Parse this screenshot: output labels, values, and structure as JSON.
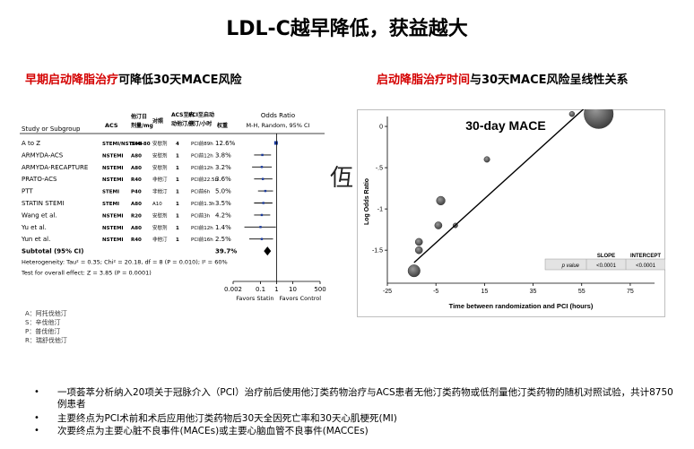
{
  "slide": {
    "title": "LDL-C越早降低，获益越大",
    "left_heading": {
      "red": "早期启动降脂治疗",
      "black": "可降低30天MACE风险"
    },
    "right_heading": {
      "red": "启动降脂治疗时间",
      "black": "与30天MACE风险呈线性关系"
    },
    "stray_glyph": "仾",
    "legend": [
      "A：阿托伐他汀",
      "S：辛伐他汀",
      "P：普伐他汀",
      "R：瑞舒伐他汀"
    ],
    "bullets": [
      "一项荟萃分析纳入20项关于冠脉介入（PCI）治疗前后使用他汀类药物治疗与ACS患者无他汀类药物或低剂量他汀类药物的随机对照试验，共计8750例患者",
      "主要终点为PCI术前和术后应用他汀类药物后30天全因死亡率和30天心肌梗死(MI)",
      "次要终点为主要心脏不良事件(MACEs)或主要心脑血管不良事件(MACCEs)"
    ]
  },
  "chart_data": [
    {
      "type": "table",
      "headers": {
        "study": "Study or Subgroup",
        "acs": "ACS",
        "dose": [
          "他汀日",
          "剂量/mg"
        ],
        "control": "对照",
        "days": [
          "ACS至启",
          "动他汀/天"
        ],
        "pci": [
          "PCI至启动",
          "他汀/小时"
        ],
        "weight": "权重",
        "or": [
          "Odds Ratio",
          "M-H, Random, 95% CI"
        ]
      },
      "rows": [
        {
          "study": "A to Z",
          "acs": "STEMI/NSTEMI",
          "dose": "S40-80",
          "control": "安慰剂",
          "days": "4",
          "pci": "PCI前89h",
          "weight": "12.6%",
          "or": 0.92,
          "lo": 0.89,
          "hi": 0.95,
          "marker": "square"
        },
        {
          "study": "ARMYDA-ACS",
          "acs": "NSTEMI",
          "dose": "A80",
          "control": "安慰剂",
          "days": "1",
          "pci": "PCI前12h",
          "weight": "3.8%",
          "or": 0.13,
          "lo": 0.04,
          "hi": 0.45
        },
        {
          "study": "ARMYDA-RECAPTURE",
          "acs": "NSTEMI",
          "dose": "A80",
          "control": "安慰剂",
          "days": "1",
          "pci": "PCI前12h",
          "weight": "3.2%",
          "or": 0.12,
          "lo": 0.03,
          "hi": 0.5
        },
        {
          "study": "PRATO-ACS",
          "acs": "NSTEMI",
          "dose": "R40",
          "control": "非他汀",
          "days": "1",
          "pci": "PCI前22.5h",
          "weight": "3.6%",
          "or": 0.14,
          "lo": 0.04,
          "hi": 0.55
        },
        {
          "study": "PTT",
          "acs": "STEMI",
          "dose": "P40",
          "control": "非他汀",
          "days": "1",
          "pci": "PCI前6h",
          "weight": "5.0%",
          "or": 0.2,
          "lo": 0.07,
          "hi": 0.6
        },
        {
          "study": "STATIN STEMI",
          "acs": "STEMI",
          "dose": "A80",
          "control": "A10",
          "days": "1",
          "pci": "PCI前1.3h",
          "weight": "3.5%",
          "or": 0.15,
          "lo": 0.04,
          "hi": 0.55
        },
        {
          "study": "Wang et al.",
          "acs": "NSTEMI",
          "dose": "R20",
          "control": "安慰剂",
          "days": "1",
          "pci": "PCI前3h",
          "weight": "4.2%",
          "or": 0.12,
          "lo": 0.04,
          "hi": 0.4
        },
        {
          "study": "Yu et al.",
          "acs": "NSTEMI",
          "dose": "A80",
          "control": "安慰剂",
          "days": "1",
          "pci": "PCI前12h",
          "weight": "1.4%",
          "or": 0.1,
          "lo": 0.01,
          "hi": 0.9
        },
        {
          "study": "Yun et al.",
          "acs": "NSTEMI",
          "dose": "R40",
          "control": "非他汀",
          "days": "1",
          "pci": "PCI前16h",
          "weight": "2.5%",
          "or": 0.12,
          "lo": 0.02,
          "hi": 0.6
        }
      ],
      "subtotal": {
        "label": "Subtotal (95% CI)",
        "weight": "39.7%",
        "or": 0.27,
        "lo": 0.15,
        "hi": 0.5
      },
      "heterogeneity": "Heterogeneity: Tau² = 0.35; Chi² = 20.18, df = 8 (P = 0.010); I² = 60%",
      "overall": "Test for overall effect: Z = 3.85 (P = 0.0001)",
      "x_ticks": [
        0.002,
        0.1,
        1,
        10,
        500
      ],
      "x_tick_labels": [
        "0.002",
        "0.1",
        "1",
        "10",
        "500"
      ],
      "xlim": [
        0.002,
        500
      ],
      "x_scale": "log",
      "favors": [
        "Favors Statin",
        "Favors Control"
      ]
    },
    {
      "type": "scatter",
      "title": "30-day MACE",
      "xlabel": "Time between randomization and PCI (hours)",
      "ylabel": "Log Odds Ratio",
      "xlim": [
        -25,
        85
      ],
      "ylim": [
        -1.9,
        0.12
      ],
      "x_ticks": [
        -25,
        -5,
        15,
        35,
        55,
        75
      ],
      "y_ticks": [
        0,
        -0.5,
        -1,
        -1.5
      ],
      "y_tick_labels": [
        "0",
        "-.5",
        "-1",
        "-1.5"
      ],
      "points": [
        {
          "x": -14,
          "y": -1.75,
          "r": 2.5
        },
        {
          "x": -12,
          "y": -1.5,
          "r": 1.5
        },
        {
          "x": -12,
          "y": -1.4,
          "r": 1.5
        },
        {
          "x": -4,
          "y": -1.2,
          "r": 1.5
        },
        {
          "x": -3,
          "y": -0.9,
          "r": 1.8
        },
        {
          "x": 3,
          "y": -1.2,
          "r": 1
        },
        {
          "x": 16,
          "y": -0.4,
          "r": 1.2
        },
        {
          "x": 51,
          "y": 0.15,
          "r": 1.1
        },
        {
          "x": 62,
          "y": 0.15,
          "r": 6
        }
      ],
      "fit_line": {
        "x1": -14,
        "y1": -1.65,
        "x2": 61,
        "y2": 0.35
      },
      "stats_table": {
        "headers": [
          "SLOPE",
          "INTERCEPT"
        ],
        "row_label": "p value",
        "values": [
          "<0.0001",
          "<0.0001"
        ]
      }
    }
  ]
}
